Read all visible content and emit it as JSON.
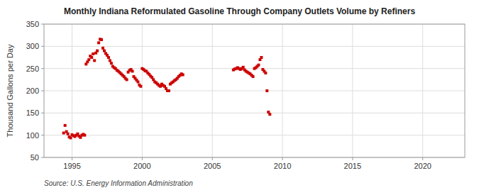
{
  "chart_data": {
    "type": "scatter",
    "title": "Monthly Indiana Reformulated Gasoline Through Company Outlets Volume by Refiners",
    "y_label": "Thousand Gallons per Day",
    "annotations": [
      "Source: U.S. Energy Information Administration"
    ],
    "color": "#cc0000",
    "marker": "square",
    "grid": true,
    "xlim": [
      1993.0,
      2023.0
    ],
    "ylim": [
      50,
      350
    ],
    "xticks": [
      1995,
      2000,
      2005,
      2010,
      2015,
      2020
    ],
    "yticks": [
      50,
      100,
      150,
      200,
      250,
      300,
      350
    ],
    "x": [
      1994.4,
      1994.5,
      1994.6,
      1994.7,
      1994.8,
      1994.9,
      1995.0,
      1995.1,
      1995.2,
      1995.3,
      1995.4,
      1995.5,
      1995.6,
      1995.7,
      1995.8,
      1995.9,
      1996.0,
      1996.1,
      1996.2,
      1996.3,
      1996.4,
      1996.5,
      1996.6,
      1996.7,
      1996.8,
      1996.9,
      1997.0,
      1997.1,
      1997.2,
      1997.3,
      1997.4,
      1997.5,
      1997.6,
      1997.7,
      1997.8,
      1997.9,
      1998.0,
      1998.1,
      1998.2,
      1998.3,
      1998.4,
      1998.5,
      1998.6,
      1998.7,
      1998.8,
      1998.9,
      1999.0,
      1999.1,
      1999.2,
      1999.3,
      1999.4,
      1999.5,
      1999.6,
      1999.7,
      1999.8,
      1999.9,
      2000.0,
      2000.1,
      2000.2,
      2000.3,
      2000.4,
      2000.5,
      2000.6,
      2000.7,
      2000.8,
      2000.9,
      2001.0,
      2001.1,
      2001.2,
      2001.3,
      2001.4,
      2001.5,
      2001.6,
      2001.7,
      2001.8,
      2001.9,
      2002.0,
      2002.1,
      2002.2,
      2002.3,
      2002.4,
      2002.5,
      2002.6,
      2002.7,
      2002.8,
      2002.9,
      2006.5,
      2006.6,
      2006.7,
      2006.8,
      2006.9,
      2007.0,
      2007.1,
      2007.2,
      2007.3,
      2007.4,
      2007.5,
      2007.6,
      2007.7,
      2007.8,
      2007.9,
      2008.0,
      2008.1,
      2008.2,
      2008.3,
      2008.4,
      2008.5,
      2008.6,
      2008.7,
      2008.8,
      2008.9,
      2009.0,
      2009.1
    ],
    "values": [
      105,
      122,
      108,
      103,
      96,
      94,
      101,
      99,
      97,
      100,
      103,
      98,
      95,
      100,
      102,
      100,
      260,
      265,
      270,
      278,
      275,
      283,
      268,
      285,
      290,
      308,
      316,
      315,
      296,
      290,
      284,
      280,
      275,
      268,
      262,
      255,
      252,
      250,
      246,
      244,
      241,
      238,
      235,
      232,
      228,
      225,
      242,
      246,
      248,
      244,
      232,
      228,
      224,
      220,
      213,
      210,
      250,
      248,
      245,
      244,
      240,
      237,
      233,
      230,
      225,
      220,
      218,
      215,
      212,
      210,
      215,
      212,
      210,
      205,
      200,
      200,
      215,
      218,
      220,
      223,
      225,
      228,
      232,
      235,
      238,
      236,
      247,
      249,
      250,
      252,
      250,
      248,
      250,
      253,
      247,
      244,
      242,
      240,
      238,
      235,
      232,
      250,
      252,
      255,
      258,
      270,
      275,
      248,
      244,
      240,
      200,
      152,
      147
    ]
  }
}
